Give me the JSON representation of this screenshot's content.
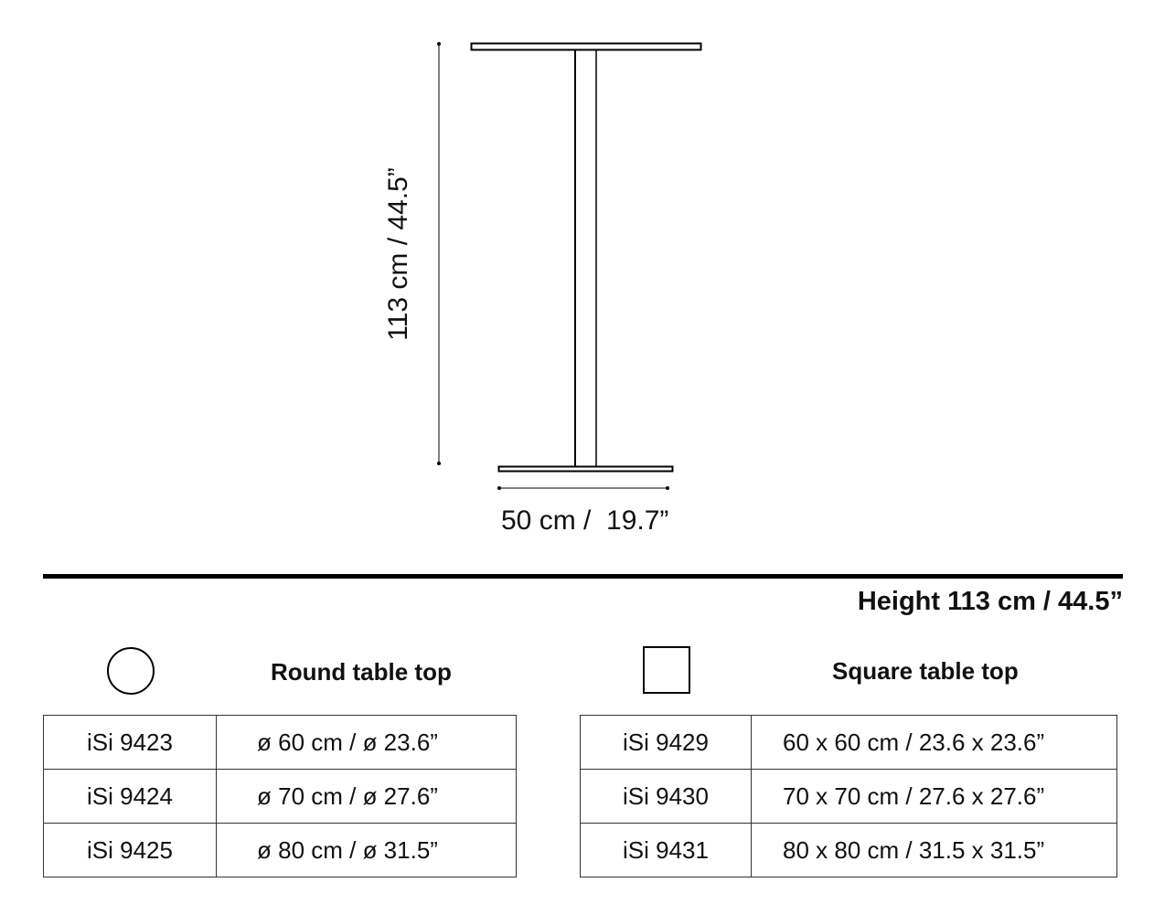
{
  "drawing": {
    "height_dimension": "113 cm / 44.5”",
    "base_dimension": "50 cm /  19.7”"
  },
  "header": {
    "height_label": "Height 113 cm / 44.5”"
  },
  "round": {
    "icon": "circle-icon",
    "title": "Round table top",
    "rows": [
      {
        "code": "iSi 9423",
        "size": "ø 60 cm / ø 23.6”"
      },
      {
        "code": "iSi 9424",
        "size": "ø 70 cm / ø 27.6”"
      },
      {
        "code": "iSi 9425",
        "size": "ø 80 cm / ø 31.5”"
      }
    ]
  },
  "square": {
    "icon": "square-icon",
    "title": "Square table top",
    "rows": [
      {
        "code": "iSi 9429",
        "size": "60 x 60 cm / 23.6 x 23.6”"
      },
      {
        "code": "iSi 9430",
        "size": "70 x 70 cm / 27.6 x 27.6”"
      },
      {
        "code": "iSi 9431",
        "size": "80 x 80 cm / 31.5 x 31.5”"
      }
    ]
  }
}
